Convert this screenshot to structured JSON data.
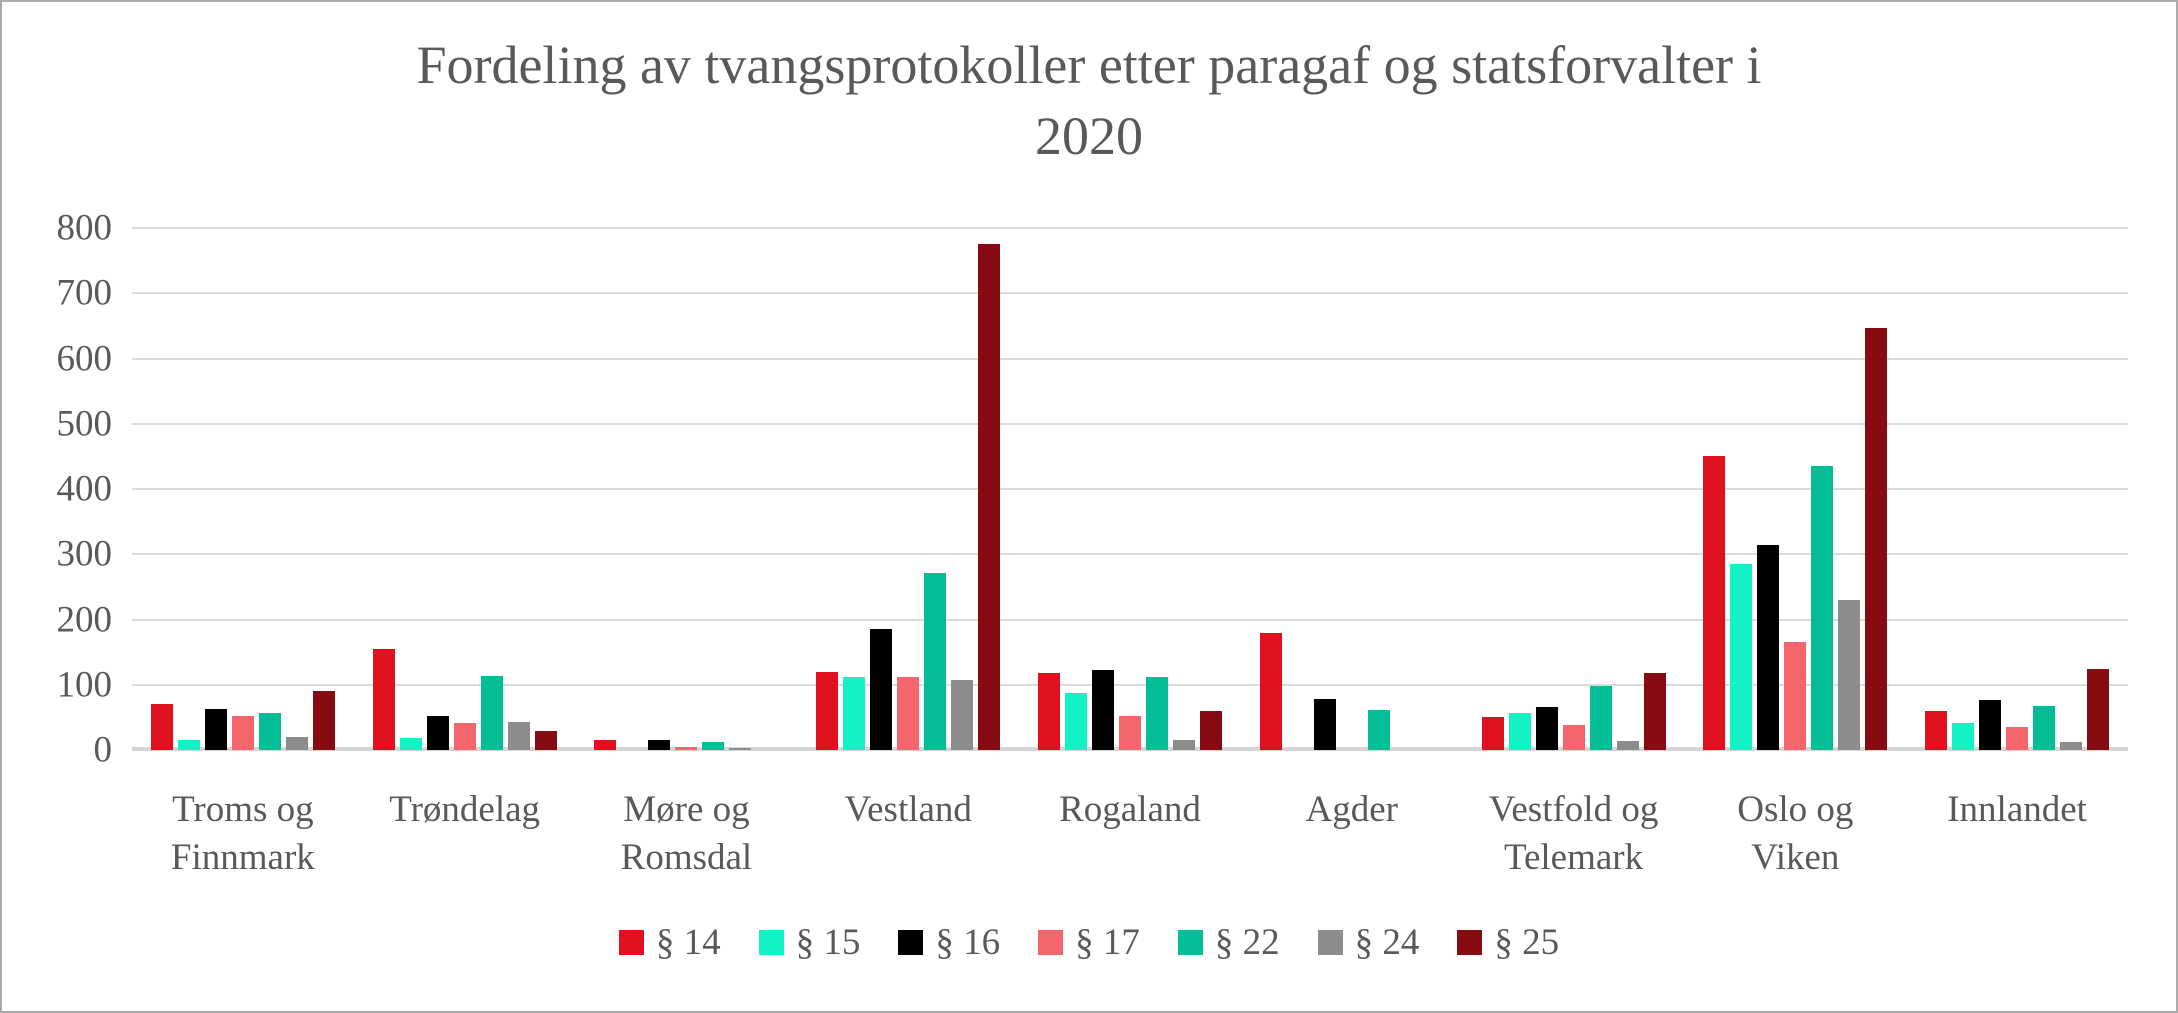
{
  "chart_data": {
    "type": "bar",
    "title": "Fordeling av tvangsprotokoller etter paragaf og statsforvalter i 2020",
    "title_lines": [
      "Fordeling av tvangsprotokoller etter paragaf og statsforvalter i",
      "2020"
    ],
    "categories": [
      "Troms og Finnmark",
      "Trøndelag",
      "Møre og Romsdal",
      "Vestland",
      "Rogaland",
      "Agder",
      "Vestfold og Telemark",
      "Oslo og Viken",
      "Innlandet"
    ],
    "series": [
      {
        "name": "§ 14",
        "color": "#e0101e",
        "values": [
          70,
          155,
          15,
          120,
          118,
          180,
          50,
          450,
          60
        ]
      },
      {
        "name": "§ 15",
        "color": "#12f2c5",
        "values": [
          15,
          18,
          0,
          112,
          87,
          0,
          56,
          285,
          42
        ]
      },
      {
        "name": "§ 16",
        "color": "#000000",
        "values": [
          63,
          52,
          15,
          186,
          123,
          78,
          66,
          314,
          76
        ]
      },
      {
        "name": "§ 17",
        "color": "#f4666c",
        "values": [
          52,
          42,
          5,
          112,
          52,
          0,
          38,
          166,
          36
        ]
      },
      {
        "name": "§ 22",
        "color": "#02bd96",
        "values": [
          57,
          113,
          12,
          272,
          112,
          62,
          98,
          435,
          68
        ]
      },
      {
        "name": "§ 24",
        "color": "#8c8c8c",
        "values": [
          20,
          43,
          3,
          107,
          15,
          0,
          14,
          230,
          13
        ]
      },
      {
        "name": "§ 25",
        "color": "#870c12",
        "values": [
          90,
          29,
          0,
          775,
          60,
          0,
          118,
          647,
          124
        ]
      }
    ],
    "ylim": [
      0,
      800
    ],
    "ytick_step": 100,
    "yticks": [
      0,
      100,
      200,
      300,
      400,
      500,
      600,
      700,
      800
    ],
    "xlabel": "",
    "ylabel": "",
    "grid": true,
    "legend_position": "bottom"
  },
  "colors": {
    "text": "#595959",
    "gridline": "#dbdbdb",
    "frame_border": "#ababab",
    "background": "#ffffff"
  }
}
